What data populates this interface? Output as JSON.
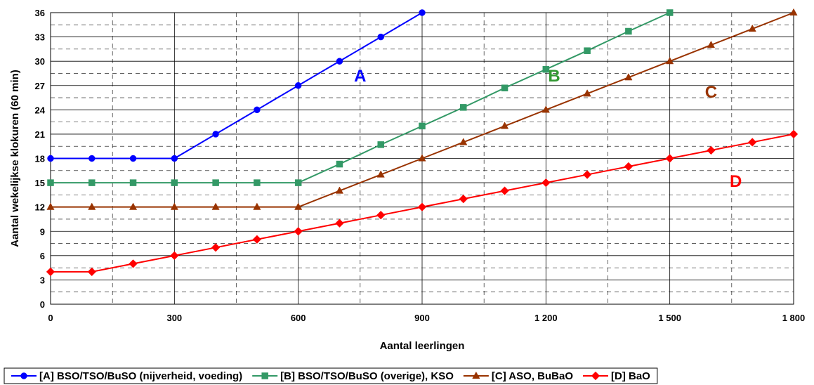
{
  "chart_data": {
    "type": "line",
    "xlabel": "Aantal leerlingen",
    "ylabel": "Aantal wekelijkse klokuren (60 min)",
    "xlim": [
      0,
      1800
    ],
    "ylim": [
      0,
      36
    ],
    "x_ticks": [
      0,
      300,
      600,
      900,
      1200,
      1500,
      1800
    ],
    "x_tick_labels": [
      "0",
      "300",
      "600",
      "900",
      "1 200",
      "1 500",
      "1 800"
    ],
    "y_ticks": [
      0,
      3,
      6,
      9,
      12,
      15,
      18,
      21,
      24,
      27,
      30,
      33,
      36
    ],
    "y_tick_labels": [
      "0",
      "3",
      "6",
      "9",
      "12",
      "15",
      "18",
      "21",
      "24",
      "27",
      "30",
      "33",
      "36"
    ],
    "grid": true,
    "legend_position": "bottom",
    "series": [
      {
        "name": "[A] BSO/TSO/BuSO (nijverheid, voeding)",
        "label": "A",
        "color": "#0000FF",
        "marker": "circle",
        "x": [
          0,
          100,
          200,
          300,
          400,
          500,
          600,
          700,
          800,
          900
        ],
        "y": [
          18,
          18,
          18,
          18,
          21,
          24,
          27,
          30,
          33,
          36
        ]
      },
      {
        "name": "[B] BSO/TSO/BuSO (overige), KSO",
        "label": "B",
        "color": "#339966",
        "label_color": "#339933",
        "marker": "square",
        "x": [
          0,
          100,
          200,
          300,
          400,
          500,
          600,
          700,
          800,
          900,
          1000,
          1100,
          1200,
          1300,
          1400,
          1500
        ],
        "y": [
          15,
          15,
          15,
          15,
          15,
          15,
          15,
          17.3,
          19.7,
          22,
          24.3,
          26.7,
          29,
          31.3,
          33.7,
          36
        ]
      },
      {
        "name": "[C] ASO, BuBaO",
        "label": "C",
        "color": "#993300",
        "marker": "triangle",
        "x": [
          0,
          100,
          200,
          300,
          400,
          500,
          600,
          700,
          800,
          900,
          1000,
          1100,
          1200,
          1300,
          1400,
          1500,
          1600,
          1700,
          1800
        ],
        "y": [
          12,
          12,
          12,
          12,
          12,
          12,
          12,
          14,
          16,
          18,
          20,
          22,
          24,
          26,
          28,
          30,
          32,
          34,
          36
        ]
      },
      {
        "name": "[D] BaO",
        "label": "D",
        "color": "#FF0000",
        "marker": "diamond",
        "x": [
          0,
          100,
          200,
          300,
          400,
          500,
          600,
          700,
          800,
          900,
          1000,
          1100,
          1200,
          1300,
          1400,
          1500,
          1600,
          1700,
          1800
        ],
        "y": [
          4,
          4,
          5,
          6,
          7,
          8,
          9,
          10,
          11,
          12,
          13,
          14,
          15,
          16,
          17,
          18,
          19,
          20,
          21
        ]
      }
    ]
  }
}
